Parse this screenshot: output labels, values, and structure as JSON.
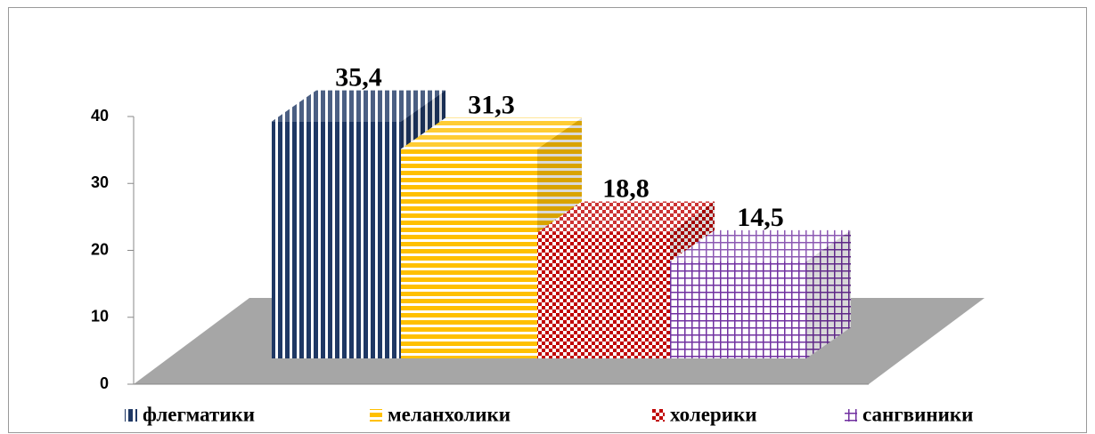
{
  "chart_data": {
    "type": "bar3d",
    "categories": [
      null
    ],
    "series": [
      {
        "name": "флегматики",
        "color": "#1f3864",
        "pattern": "vertical",
        "values": [
          35.4
        ],
        "value_labels": [
          "35,4"
        ]
      },
      {
        "name": "меланхолики",
        "color": "#ffc000",
        "pattern": "horizontal",
        "values": [
          31.3
        ],
        "value_labels": [
          "31,3"
        ]
      },
      {
        "name": "холерики",
        "color": "#c00000",
        "pattern": "checker",
        "values": [
          18.8
        ],
        "value_labels": [
          "18,8"
        ]
      },
      {
        "name": "сангвиники",
        "color": "#7030a0",
        "pattern": "grid",
        "values": [
          14.5
        ],
        "value_labels": [
          "14,5"
        ]
      }
    ],
    "ylim": [
      0,
      40
    ],
    "yticks": [
      0,
      10,
      20,
      30,
      40
    ],
    "legend": "bottom"
  }
}
